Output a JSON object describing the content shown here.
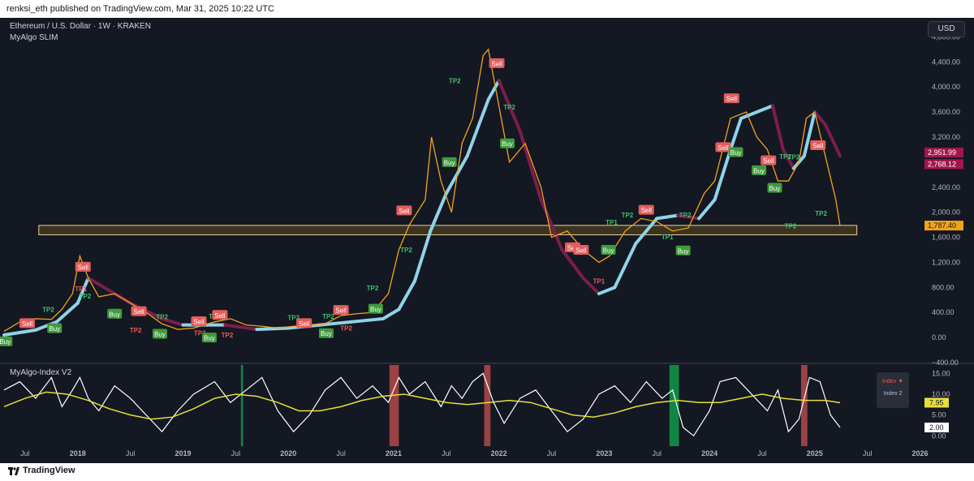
{
  "header": {
    "attribution": "renksi_eth published on TradingView.com, Mar 31, 2025 10:22 UTC"
  },
  "legend": {
    "symbol": "Ethereum / U.S. Dollar · 1W · KRAKEN",
    "indicator": "MyAlgo SLIM"
  },
  "currency_button": "USD",
  "indicator_panel": {
    "title": "MyAlgo-Index V2",
    "legend_items": [
      "Index ▼",
      "Index 2"
    ]
  },
  "footer": {
    "brand": "TradingView",
    "logo_icon": "tradingview-logo-icon"
  },
  "colors": {
    "background": "#141823",
    "text": "#b2b5be",
    "price": "#f0a31c",
    "up_trend": "#8fd3e8",
    "down_trend": "#7b1e4b",
    "buy": "#3f9b3c",
    "sell": "#e35d5d",
    "tp_up": "#3fc16b",
    "tp_down": "#e35d5d",
    "zone": "#e8d29a",
    "oscillator": "#ffffff",
    "signal": "#e8de3a",
    "green_band": "#119a4a",
    "red_band": "#b24a4a",
    "last_price": "#f0a31c",
    "resistance_label": "#a3174a"
  },
  "chart_data": [
    {
      "type": "line",
      "title": "Ethereum / U.S. Dollar · 1W · KRAKEN",
      "y_axis": {
        "ticks": [
          -400,
          0,
          400,
          800,
          1200,
          1600,
          2000,
          2400,
          2800,
          3200,
          3600,
          4000,
          4400,
          4800
        ],
        "tick_labels": [
          "−400.00",
          "0.00",
          "400.00",
          "800.00",
          "1,200.00",
          "1,600.00",
          "2,000.00",
          "2,400.00",
          "2,800.00",
          "3,200.00",
          "3,600.00",
          "4,000.00",
          "4,400.00",
          "4,800.00"
        ],
        "range": [
          -400,
          5000
        ]
      },
      "x_axis": {
        "range": [
          2017.3,
          2026.05
        ],
        "ticks": [
          2017.5,
          2018,
          2018.5,
          2019,
          2019.5,
          2020,
          2020.5,
          2021,
          2021.5,
          2022,
          2022.5,
          2023,
          2023.5,
          2024,
          2024.5,
          2025,
          2025.5,
          2026
        ],
        "tick_labels": [
          "Jul",
          "2018",
          "Jul",
          "2019",
          "Jul",
          "2020",
          "Jul",
          "2021",
          "Jul",
          "2022",
          "Jul",
          "2023",
          "Jul",
          "2024",
          "Jul",
          "2025",
          "Jul",
          "2026"
        ]
      },
      "series": [
        {
          "role": "price",
          "x": [
            2017.3,
            2017.45,
            2017.6,
            2017.75,
            2017.85,
            2017.95,
            2018.02,
            2018.1,
            2018.2,
            2018.35,
            2018.5,
            2018.65,
            2018.8,
            2018.95,
            2019.1,
            2019.3,
            2019.45,
            2019.6,
            2019.75,
            2019.9,
            2020.05,
            2020.2,
            2020.35,
            2020.5,
            2020.65,
            2020.8,
            2020.95,
            2021.05,
            2021.15,
            2021.3,
            2021.36,
            2021.45,
            2021.55,
            2021.65,
            2021.75,
            2021.85,
            2021.9,
            2022.0,
            2022.1,
            2022.25,
            2022.4,
            2022.5,
            2022.65,
            2022.8,
            2022.95,
            2023.05,
            2023.2,
            2023.35,
            2023.5,
            2023.65,
            2023.8,
            2023.95,
            2024.05,
            2024.2,
            2024.35,
            2024.45,
            2024.55,
            2024.65,
            2024.75,
            2024.85,
            2024.92,
            2025.0,
            2025.1,
            2025.2,
            2025.24
          ],
          "y": [
            100,
            250,
            300,
            290,
            450,
            700,
            1300,
            950,
            650,
            700,
            550,
            400,
            220,
            130,
            150,
            250,
            300,
            200,
            180,
            150,
            180,
            200,
            220,
            350,
            380,
            400,
            700,
            1400,
            1800,
            2200,
            3200,
            2500,
            2000,
            3100,
            3500,
            4500,
            4600,
            3700,
            2800,
            3100,
            2400,
            1600,
            1700,
            1400,
            1200,
            1300,
            1700,
            1900,
            1850,
            1700,
            1750,
            2300,
            2500,
            3500,
            3600,
            3200,
            3000,
            2500,
            2500,
            2800,
            3500,
            3600,
            2900,
            2200,
            1787
          ]
        },
        {
          "role": "trend_band",
          "x": [
            2017.3,
            2017.6,
            2017.8,
            2018.0,
            2018.1,
            2018.3,
            2018.5,
            2018.8,
            2019.0,
            2019.4,
            2019.7,
            2020.0,
            2020.3,
            2020.6,
            2020.9,
            2021.05,
            2021.2,
            2021.35,
            2021.5,
            2021.7,
            2021.9,
            2022.0,
            2022.2,
            2022.4,
            2022.6,
            2022.8,
            2022.95,
            2023.1,
            2023.3,
            2023.5,
            2023.7,
            2023.9,
            2024.05,
            2024.2,
            2024.3,
            2024.45,
            2024.6,
            2024.7,
            2024.8,
            2024.9,
            2025.0,
            2025.1,
            2025.24
          ],
          "y": [
            40,
            120,
            250,
            550,
            950,
            750,
            550,
            300,
            200,
            200,
            130,
            150,
            200,
            250,
            300,
            450,
            900,
            1700,
            2300,
            2900,
            3800,
            4100,
            3300,
            2200,
            1400,
            950,
            700,
            800,
            1500,
            1900,
            1950,
            1900,
            2200,
            3000,
            3500,
            3600,
            3700,
            3000,
            2700,
            2900,
            3600,
            3400,
            2900
          ]
        },
        {
          "role": "oscillator",
          "x": [
            2017.3,
            2017.45,
            2017.6,
            2017.75,
            2017.85,
            2017.95,
            2018.02,
            2018.1,
            2018.2,
            2018.35,
            2018.5,
            2018.65,
            2018.8,
            2018.95,
            2019.1,
            2019.3,
            2019.45,
            2019.6,
            2019.75,
            2019.9,
            2020.05,
            2020.2,
            2020.35,
            2020.5,
            2020.65,
            2020.8,
            2020.95,
            2021.05,
            2021.15,
            2021.3,
            2021.45,
            2021.55,
            2021.65,
            2021.75,
            2021.85,
            2021.95,
            2022.05,
            2022.2,
            2022.35,
            2022.5,
            2022.65,
            2022.8,
            2022.95,
            2023.1,
            2023.25,
            2023.4,
            2023.55,
            2023.65,
            2023.75,
            2023.85,
            2024.0,
            2024.1,
            2024.25,
            2024.4,
            2024.55,
            2024.65,
            2024.75,
            2024.85,
            2024.95,
            2025.05,
            2025.15,
            2025.24
          ],
          "y": [
            11,
            13,
            9,
            14,
            7,
            11,
            14,
            9,
            6,
            12,
            9,
            5,
            1,
            6,
            10,
            13,
            8,
            11,
            14,
            6,
            1,
            5,
            11,
            14,
            9,
            12,
            8,
            14,
            10,
            13,
            7,
            12,
            9,
            13,
            15,
            8,
            3,
            9,
            11,
            6,
            1,
            4,
            10,
            12,
            8,
            13,
            9,
            11,
            2,
            0,
            6,
            13,
            14,
            10,
            6,
            11,
            1,
            4,
            14,
            13,
            5,
            2
          ]
        },
        {
          "role": "signal",
          "x": [
            2017.3,
            2017.5,
            2017.7,
            2017.9,
            2018.1,
            2018.3,
            2018.5,
            2018.7,
            2018.9,
            2019.1,
            2019.3,
            2019.5,
            2019.7,
            2019.9,
            2020.1,
            2020.3,
            2020.5,
            2020.7,
            2020.9,
            2021.1,
            2021.3,
            2021.5,
            2021.7,
            2021.9,
            2022.1,
            2022.3,
            2022.5,
            2022.7,
            2022.9,
            2023.1,
            2023.3,
            2023.5,
            2023.7,
            2023.9,
            2024.1,
            2024.3,
            2024.5,
            2024.7,
            2024.9,
            2025.1,
            2025.24
          ],
          "y": [
            7,
            9,
            10.5,
            10,
            8.5,
            6.5,
            5,
            4,
            4.5,
            6.5,
            9,
            10,
            9.5,
            8,
            6,
            6,
            7,
            8.5,
            9.5,
            10,
            9,
            8,
            7.5,
            8,
            8.5,
            8,
            6.5,
            5,
            4.5,
            5.5,
            7,
            8,
            8.5,
            8,
            8,
            9,
            10,
            9,
            8.5,
            8.5,
            7.95
          ]
        }
      ],
      "resistance_zone": {
        "from": 1640,
        "to": 1790
      },
      "price_labels": [
        {
          "value": 2951.99,
          "text": "2,951.99"
        },
        {
          "value": 2768.12,
          "text": "2,768.12"
        },
        {
          "value": 1787.4,
          "text": "1,787.40"
        }
      ],
      "signals": [
        {
          "text": "Buy",
          "x": 2017.31,
          "y": -60
        },
        {
          "text": "Sell",
          "x": 2017.52,
          "y": 230
        },
        {
          "text": "TP2",
          "x": 2017.72,
          "y": 450
        },
        {
          "text": "Buy",
          "x": 2017.78,
          "y": 150
        },
        {
          "text": "Sell",
          "x": 2018.05,
          "y": 1130
        },
        {
          "text": "TP1",
          "x": 2018.03,
          "y": 780
        },
        {
          "text": "TP2",
          "x": 2018.07,
          "y": 660
        },
        {
          "text": "Buy",
          "x": 2018.35,
          "y": 380
        },
        {
          "text": "Sell",
          "x": 2018.58,
          "y": 420
        },
        {
          "text": "TP2",
          "x": 2018.55,
          "y": 120
        },
        {
          "text": "TP2",
          "x": 2018.8,
          "y": 330
        },
        {
          "text": "Buy",
          "x": 2018.78,
          "y": 60
        },
        {
          "text": "Sell",
          "x": 2019.15,
          "y": 260
        },
        {
          "text": "TP2",
          "x": 2019.3,
          "y": 340
        },
        {
          "text": "TP2",
          "x": 2019.16,
          "y": 70
        },
        {
          "text": "Buy",
          "x": 2019.25,
          "y": 0
        },
        {
          "text": "Sell",
          "x": 2019.35,
          "y": 360
        },
        {
          "text": "TP2",
          "x": 2019.42,
          "y": 40
        },
        {
          "text": "TP2",
          "x": 2020.05,
          "y": 320
        },
        {
          "text": "Sell",
          "x": 2020.15,
          "y": 230
        },
        {
          "text": "TP2",
          "x": 2020.38,
          "y": 340
        },
        {
          "text": "Buy",
          "x": 2020.36,
          "y": 70
        },
        {
          "text": "Sell",
          "x": 2020.5,
          "y": 440
        },
        {
          "text": "TP2",
          "x": 2020.55,
          "y": 150
        },
        {
          "text": "TP2",
          "x": 2020.8,
          "y": 790
        },
        {
          "text": "Buy",
          "x": 2020.83,
          "y": 460
        },
        {
          "text": "Sell",
          "x": 2021.1,
          "y": 2030
        },
        {
          "text": "TP2",
          "x": 2021.12,
          "y": 1400
        },
        {
          "text": "TP2",
          "x": 2021.58,
          "y": 4100
        },
        {
          "text": "Buy",
          "x": 2021.53,
          "y": 2800
        },
        {
          "text": "Sell",
          "x": 2021.98,
          "y": 4380
        },
        {
          "text": "TP2",
          "x": 2022.1,
          "y": 3680
        },
        {
          "text": "Buy",
          "x": 2022.08,
          "y": 3100
        },
        {
          "text": "Sell",
          "x": 2022.7,
          "y": 1440
        },
        {
          "text": "Sell",
          "x": 2022.78,
          "y": 1400
        },
        {
          "text": "TP1",
          "x": 2022.95,
          "y": 900
        },
        {
          "text": "Buy",
          "x": 2023.04,
          "y": 1400
        },
        {
          "text": "TP1",
          "x": 2023.07,
          "y": 1840
        },
        {
          "text": "TP2",
          "x": 2023.22,
          "y": 1960
        },
        {
          "text": "Sell",
          "x": 2023.4,
          "y": 2040
        },
        {
          "text": "TP1",
          "x": 2023.6,
          "y": 1610
        },
        {
          "text": "TP2",
          "x": 2023.77,
          "y": 1960
        },
        {
          "text": "Buy",
          "x": 2023.75,
          "y": 1390
        },
        {
          "text": "Sell",
          "x": 2024.21,
          "y": 3820
        },
        {
          "text": "Sell",
          "x": 2024.13,
          "y": 3040
        },
        {
          "text": "Buy",
          "x": 2024.25,
          "y": 2960
        },
        {
          "text": "Buy",
          "x": 2024.47,
          "y": 2670
        },
        {
          "text": "Sell",
          "x": 2024.56,
          "y": 2830
        },
        {
          "text": "TP2",
          "x": 2024.72,
          "y": 2890
        },
        {
          "text": "TP2",
          "x": 2024.8,
          "y": 2880
        },
        {
          "text": "Buy",
          "x": 2024.62,
          "y": 2390
        },
        {
          "text": "TP2",
          "x": 2024.77,
          "y": 1780
        },
        {
          "text": "Sell",
          "x": 2025.03,
          "y": 3070
        },
        {
          "text": "TP2",
          "x": 2025.06,
          "y": 1980
        }
      ]
    },
    {
      "type": "line",
      "title": "MyAlgo-Index V2",
      "y_axis": {
        "ticks": [
          0,
          5,
          10,
          15
        ],
        "tick_labels": [
          "0.00",
          "5.00",
          "10.00",
          "15.00"
        ],
        "range": [
          -1.5,
          17
        ]
      },
      "value_labels": [
        {
          "value": 7.95,
          "text": "7.95"
        },
        {
          "value": 2.0,
          "text": "2.00"
        }
      ],
      "bands": [
        {
          "color": "green",
          "from": 2019.55,
          "to": 2019.57
        },
        {
          "color": "red",
          "from": 2020.96,
          "to": 2021.05
        },
        {
          "color": "red",
          "from": 2021.86,
          "to": 2021.92
        },
        {
          "color": "green",
          "from": 2023.62,
          "to": 2023.71
        },
        {
          "color": "red",
          "from": 2024.87,
          "to": 2024.93
        }
      ]
    }
  ]
}
